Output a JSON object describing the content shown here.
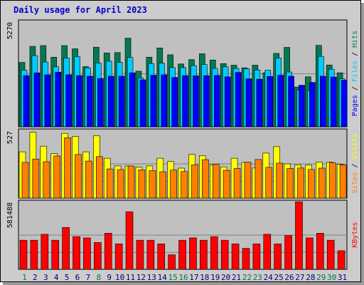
{
  "title": "Daily usage for April 2023",
  "chart_data": [
    {
      "type": "bar",
      "panel": "pages-files-hits",
      "categories": [
        "1",
        "2",
        "3",
        "4",
        "5",
        "6",
        "7",
        "8",
        "9",
        "10",
        "11",
        "12",
        "13",
        "14",
        "15",
        "16",
        "17",
        "18",
        "19",
        "20",
        "21",
        "22",
        "23",
        "24",
        "25",
        "26",
        "27",
        "28",
        "29",
        "30",
        "31"
      ],
      "ymax_label": "5270",
      "ylim": [
        0,
        5270
      ],
      "series": [
        {
          "name": "Hits",
          "color": "#007a52",
          "values": [
            3220,
            4020,
            4060,
            3480,
            4060,
            3900,
            3010,
            3980,
            3690,
            3710,
            4430,
            2780,
            3480,
            3940,
            3600,
            3140,
            3360,
            3650,
            3340,
            3160,
            3080,
            2950,
            3080,
            2700,
            3670,
            3970,
            1990,
            2500,
            4070,
            3090,
            2700
          ]
        },
        {
          "name": "Files",
          "color": "#00ccff",
          "values": [
            2830,
            3560,
            3240,
            3000,
            3440,
            3510,
            2950,
            3190,
            3280,
            3230,
            3470,
            2440,
            3160,
            3180,
            2960,
            2960,
            3060,
            3110,
            2920,
            3000,
            2920,
            2900,
            2840,
            2830,
            3440,
            2740,
            1850,
            1810,
            3520,
            2880,
            2400
          ]
        },
        {
          "name": "Pages",
          "color": "#0000ff",
          "values": [
            2560,
            2700,
            2600,
            2730,
            2600,
            2560,
            2530,
            2420,
            2530,
            2530,
            2700,
            2350,
            2580,
            2600,
            2470,
            2560,
            2550,
            2560,
            2570,
            2500,
            2720,
            2400,
            2380,
            2520,
            2580,
            2530,
            2080,
            2220,
            2530,
            2490,
            2330
          ]
        }
      ],
      "legend_labels": [
        "Pages",
        "Files",
        "Hits"
      ]
    },
    {
      "type": "bar",
      "panel": "visits-sites",
      "categories": [
        "1",
        "2",
        "3",
        "4",
        "5",
        "6",
        "7",
        "8",
        "9",
        "10",
        "11",
        "12",
        "13",
        "14",
        "15",
        "16",
        "17",
        "18",
        "19",
        "20",
        "21",
        "22",
        "23",
        "24",
        "25",
        "26",
        "27",
        "28",
        "29",
        "30",
        "31"
      ],
      "ymax_label": "527",
      "ylim": [
        0,
        527
      ],
      "series": [
        {
          "name": "Visits",
          "color": "#ffff00",
          "values": [
            360,
            512,
            404,
            346,
            504,
            481,
            360,
            486,
            310,
            250,
            250,
            240,
            250,
            310,
            285,
            233,
            340,
            331,
            258,
            243,
            310,
            278,
            234,
            350,
            400,
            266,
            258,
            258,
            280,
            280,
            262
          ]
        },
        {
          "name": "Sites",
          "color": "#ff8000",
          "values": [
            278,
            304,
            283,
            328,
            470,
            339,
            288,
            323,
            227,
            222,
            250,
            220,
            214,
            205,
            218,
            207,
            259,
            299,
            264,
            216,
            230,
            280,
            300,
            239,
            272,
            231,
            234,
            223,
            233,
            276,
            258
          ]
        }
      ],
      "legend_labels": [
        "Sites",
        "Visits"
      ]
    },
    {
      "type": "bar",
      "panel": "kbytes",
      "categories": [
        "1",
        "2",
        "3",
        "4",
        "5",
        "6",
        "7",
        "8",
        "9",
        "10",
        "11",
        "12",
        "13",
        "14",
        "15",
        "16",
        "17",
        "18",
        "19",
        "20",
        "21",
        "22",
        "23",
        "24",
        "25",
        "26",
        "27",
        "28",
        "29",
        "30",
        "31"
      ],
      "ymax_label": "581488",
      "ylim": [
        0,
        581488
      ],
      "series": [
        {
          "name": "KBytes",
          "color": "#ff0000",
          "values": [
            250000,
            250000,
            301000,
            250000,
            360000,
            281000,
            270000,
            231000,
            310000,
            219000,
            495000,
            250000,
            250000,
            219000,
            125000,
            250000,
            270000,
            250000,
            281000,
            250000,
            219000,
            180000,
            219000,
            301000,
            219000,
            290000,
            581000,
            270000,
            310000,
            250000,
            160000
          ]
        }
      ],
      "legend_labels": [
        "KBytes"
      ]
    }
  ],
  "legend_colors": {
    "Pages": "#0000ff",
    "Files": "#00ccff",
    "Hits": "#007a52",
    "Sites": "#ff8000",
    "Visits": "#ffff00",
    "KBytes": "#ff0000"
  },
  "weekend_days": [
    1,
    8,
    15,
    16,
    22,
    23,
    29,
    30
  ],
  "weekend_label_color": "#00774c",
  "weekday_label_color": "#000077"
}
